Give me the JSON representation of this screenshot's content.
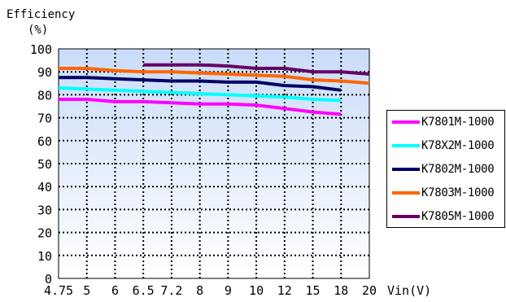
{
  "chart_data": {
    "type": "line",
    "title": "",
    "ylabel": "Efficiency",
    "ylabel_unit": "(%)",
    "xlabel": "Vin(V)",
    "x": [
      "4.75",
      "5",
      "6",
      "6.5",
      "7.2",
      "8",
      "9",
      "10",
      "12",
      "15",
      "18",
      "20"
    ],
    "ylim": [
      0,
      100
    ],
    "yticks": [
      "0",
      "10",
      "20",
      "30",
      "40",
      "50",
      "60",
      "70",
      "80",
      "90",
      "100"
    ],
    "grid": true,
    "legend_position": "right",
    "series": [
      {
        "name": "K7801M-1000",
        "color": "#ff00ff",
        "values": [
          78,
          78,
          77,
          77,
          76.5,
          76,
          76,
          75.5,
          74,
          72.5,
          71.5,
          null
        ]
      },
      {
        "name": "K78X2M-1000",
        "color": "#00ffff",
        "values": [
          83,
          82.5,
          82,
          81.5,
          81,
          80.5,
          80,
          79.5,
          79,
          78,
          77.5,
          null
        ]
      },
      {
        "name": "K7802M-1000",
        "color": "#000066",
        "values": [
          87.5,
          87.5,
          87,
          86.5,
          86,
          86,
          85.5,
          85.5,
          84,
          83.5,
          82,
          null
        ]
      },
      {
        "name": "K7803M-1000",
        "color": "#ff6600",
        "values": [
          91.5,
          91.5,
          90.5,
          90,
          90,
          89.5,
          89,
          88.5,
          88,
          86.5,
          86,
          85
        ]
      },
      {
        "name": "K7805M-1000",
        "color": "#660066",
        "values": [
          null,
          null,
          null,
          93,
          93,
          93,
          92.5,
          91.5,
          91.5,
          90,
          90,
          89
        ]
      }
    ]
  }
}
